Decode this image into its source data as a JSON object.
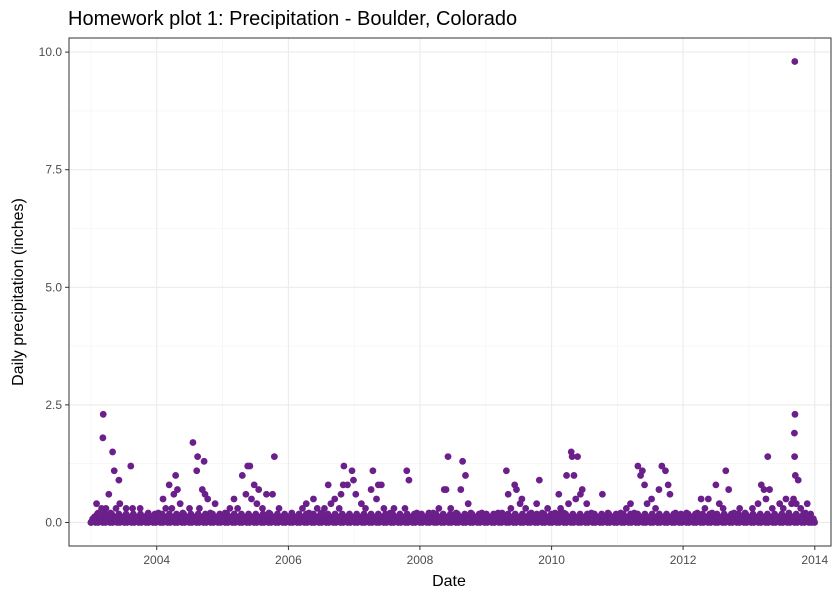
{
  "chart_data": {
    "type": "scatter",
    "title": "Homework plot 1: Precipitation - Boulder, Colorado",
    "xlabel": "Date",
    "ylabel": "Daily precipitation (inches)",
    "x_ticks": [
      "2004",
      "2006",
      "2008",
      "2010",
      "2012",
      "2014"
    ],
    "y_ticks": [
      "0.0",
      "2.5",
      "5.0",
      "7.5",
      "10.0"
    ],
    "xlim": [
      "2002-09-01",
      "2014-04-01"
    ],
    "ylim": [
      -0.5,
      10.3
    ],
    "grid": true,
    "point_color": "#6a1f8a",
    "series": [
      {
        "points": [
          [
            "2003-01-01",
            0
          ],
          [
            "2003-01-20",
            0.1
          ],
          [
            "2003-02-01",
            0.4
          ],
          [
            "2003-02-10",
            0.2
          ],
          [
            "2003-02-20",
            0.1
          ],
          [
            "2003-03-01",
            0.3
          ],
          [
            "2003-03-08",
            1.8
          ],
          [
            "2003-03-10",
            2.3
          ],
          [
            "2003-03-18",
            0.2
          ],
          [
            "2003-03-25",
            0.3
          ],
          [
            "2003-04-01",
            0.1
          ],
          [
            "2003-04-10",
            0.6
          ],
          [
            "2003-04-20",
            0.2
          ],
          [
            "2003-05-01",
            1.5
          ],
          [
            "2003-05-10",
            1.1
          ],
          [
            "2003-05-20",
            0.3
          ],
          [
            "2003-06-05",
            0.9
          ],
          [
            "2003-06-10",
            0.4
          ],
          [
            "2003-06-25",
            0.1
          ],
          [
            "2003-07-15",
            0.3
          ],
          [
            "2003-08-01",
            0.1
          ],
          [
            "2003-08-10",
            1.2
          ],
          [
            "2003-08-20",
            0.3
          ],
          [
            "2003-09-10",
            0.05
          ],
          [
            "2003-10-01",
            0.3
          ],
          [
            "2003-10-20",
            0.1
          ],
          [
            "2003-11-15",
            0.2
          ],
          [
            "2003-12-10",
            0.1
          ],
          [
            "2004-01-10",
            0.2
          ],
          [
            "2004-02-05",
            0.5
          ],
          [
            "2004-02-20",
            0.3
          ],
          [
            "2004-03-10",
            0.8
          ],
          [
            "2004-03-25",
            0.3
          ],
          [
            "2004-04-05",
            0.6
          ],
          [
            "2004-04-15",
            1.0
          ],
          [
            "2004-04-25",
            0.7
          ],
          [
            "2004-05-10",
            0.4
          ],
          [
            "2004-05-25",
            0.2
          ],
          [
            "2004-06-10",
            0.1
          ],
          [
            "2004-07-01",
            0.3
          ],
          [
            "2004-07-20",
            1.7
          ],
          [
            "2004-08-10",
            1.1
          ],
          [
            "2004-08-15",
            1.4
          ],
          [
            "2004-08-25",
            0.3
          ],
          [
            "2004-09-10",
            0.7
          ],
          [
            "2004-09-20",
            1.3
          ],
          [
            "2004-09-25",
            0.6
          ],
          [
            "2004-10-10",
            0.5
          ],
          [
            "2004-10-25",
            0.2
          ],
          [
            "2004-11-20",
            0.4
          ],
          [
            "2004-12-10",
            0.1
          ],
          [
            "2005-01-15",
            0.2
          ],
          [
            "2005-02-10",
            0.3
          ],
          [
            "2005-03-05",
            0.5
          ],
          [
            "2005-03-25",
            0.3
          ],
          [
            "2005-04-20",
            1.0
          ],
          [
            "2005-05-10",
            0.6
          ],
          [
            "2005-05-20",
            1.2
          ],
          [
            "2005-06-01",
            1.2
          ],
          [
            "2005-06-10",
            0.5
          ],
          [
            "2005-06-25",
            0.8
          ],
          [
            "2005-07-10",
            0.4
          ],
          [
            "2005-07-20",
            0.7
          ],
          [
            "2005-08-10",
            0.3
          ],
          [
            "2005-09-01",
            0.6
          ],
          [
            "2005-09-15",
            0.2
          ],
          [
            "2005-10-05",
            0.6
          ],
          [
            "2005-10-15",
            1.4
          ],
          [
            "2005-11-10",
            0.3
          ],
          [
            "2005-12-10",
            0.1
          ],
          [
            "2006-01-20",
            0.2
          ],
          [
            "2006-02-15",
            0.1
          ],
          [
            "2006-03-20",
            0.3
          ],
          [
            "2006-04-10",
            0.4
          ],
          [
            "2006-04-25",
            0.2
          ],
          [
            "2006-05-20",
            0.5
          ],
          [
            "2006-06-10",
            0.3
          ],
          [
            "2006-07-05",
            0.2
          ],
          [
            "2006-07-20",
            0.3
          ],
          [
            "2006-08-10",
            0.8
          ],
          [
            "2006-08-25",
            0.4
          ],
          [
            "2006-09-15",
            0.5
          ],
          [
            "2006-10-10",
            0.3
          ],
          [
            "2006-10-20",
            0.6
          ],
          [
            "2006-11-01",
            0.8
          ],
          [
            "2006-11-05",
            1.2
          ],
          [
            "2006-11-25",
            0.8
          ],
          [
            "2006-12-20",
            1.1
          ],
          [
            "2006-12-28",
            0.9
          ],
          [
            "2007-01-10",
            0.6
          ],
          [
            "2007-02-10",
            0.4
          ],
          [
            "2007-03-05",
            0.3
          ],
          [
            "2007-04-05",
            0.7
          ],
          [
            "2007-04-15",
            1.1
          ],
          [
            "2007-05-05",
            0.5
          ],
          [
            "2007-05-15",
            0.8
          ],
          [
            "2007-06-01",
            0.8
          ],
          [
            "2007-06-15",
            0.3
          ],
          [
            "2007-07-20",
            0.2
          ],
          [
            "2007-08-10",
            0.3
          ],
          [
            "2007-09-01",
            0.1
          ],
          [
            "2007-10-10",
            0.3
          ],
          [
            "2007-10-20",
            1.1
          ],
          [
            "2007-11-01",
            0.9
          ],
          [
            "2007-12-15",
            0.2
          ],
          [
            "2008-01-20",
            0.1
          ],
          [
            "2008-02-20",
            0.2
          ],
          [
            "2008-03-15",
            0.2
          ],
          [
            "2008-04-15",
            0.3
          ],
          [
            "2008-05-15",
            0.7
          ],
          [
            "2008-05-25",
            0.7
          ],
          [
            "2008-06-05",
            1.4
          ],
          [
            "2008-06-20",
            0.3
          ],
          [
            "2008-07-20",
            0.2
          ],
          [
            "2008-08-15",
            0.7
          ],
          [
            "2008-08-25",
            1.3
          ],
          [
            "2008-09-10",
            1.0
          ],
          [
            "2008-09-25",
            0.4
          ],
          [
            "2008-10-10",
            0.2
          ],
          [
            "2008-11-10",
            0.1
          ],
          [
            "2008-12-10",
            0.2
          ],
          [
            "2009-01-15",
            0.1
          ],
          [
            "2009-02-15",
            0.1
          ],
          [
            "2009-03-10",
            0.2
          ],
          [
            "2009-04-01",
            0.2
          ],
          [
            "2009-04-25",
            1.1
          ],
          [
            "2009-05-05",
            0.6
          ],
          [
            "2009-05-20",
            0.3
          ],
          [
            "2009-06-10",
            0.8
          ],
          [
            "2009-06-20",
            0.7
          ],
          [
            "2009-07-10",
            0.4
          ],
          [
            "2009-07-20",
            0.5
          ],
          [
            "2009-08-10",
            0.3
          ],
          [
            "2009-09-10",
            0.2
          ],
          [
            "2009-10-10",
            0.4
          ],
          [
            "2009-10-25",
            0.9
          ],
          [
            "2009-11-10",
            0.2
          ],
          [
            "2009-12-10",
            0.3
          ],
          [
            "2010-01-20",
            0.2
          ],
          [
            "2010-02-10",
            0.6
          ],
          [
            "2010-02-20",
            0.3
          ],
          [
            "2010-03-10",
            0.2
          ],
          [
            "2010-03-25",
            1.0
          ],
          [
            "2010-04-05",
            0.4
          ],
          [
            "2010-04-20",
            1.5
          ],
          [
            "2010-04-25",
            1.4
          ],
          [
            "2010-05-05",
            1.0
          ],
          [
            "2010-05-15",
            0.5
          ],
          [
            "2010-05-25",
            1.4
          ],
          [
            "2010-06-10",
            0.6
          ],
          [
            "2010-06-20",
            0.7
          ],
          [
            "2010-07-15",
            0.4
          ],
          [
            "2010-08-10",
            0.2
          ],
          [
            "2010-09-10",
            0.1
          ],
          [
            "2010-10-10",
            0.6
          ],
          [
            "2010-11-10",
            0.2
          ],
          [
            "2010-12-10",
            0.1
          ],
          [
            "2011-01-20",
            0.2
          ],
          [
            "2011-02-20",
            0.3
          ],
          [
            "2011-03-15",
            0.4
          ],
          [
            "2011-04-05",
            0.2
          ],
          [
            "2011-04-25",
            1.2
          ],
          [
            "2011-05-10",
            1.0
          ],
          [
            "2011-05-20",
            1.1
          ],
          [
            "2011-06-01",
            0.8
          ],
          [
            "2011-06-15",
            0.4
          ],
          [
            "2011-07-10",
            0.5
          ],
          [
            "2011-08-01",
            0.3
          ],
          [
            "2011-08-20",
            0.7
          ],
          [
            "2011-09-05",
            1.2
          ],
          [
            "2011-09-25",
            1.1
          ],
          [
            "2011-10-10",
            0.8
          ],
          [
            "2011-10-20",
            0.6
          ],
          [
            "2011-11-20",
            0.2
          ],
          [
            "2011-12-20",
            0.1
          ],
          [
            "2012-01-20",
            0.2
          ],
          [
            "2012-02-20",
            0.1
          ],
          [
            "2012-03-20",
            0.2
          ],
          [
            "2012-04-10",
            0.5
          ],
          [
            "2012-05-01",
            0.3
          ],
          [
            "2012-05-20",
            0.5
          ],
          [
            "2012-06-10",
            0.2
          ],
          [
            "2012-07-01",
            0.8
          ],
          [
            "2012-07-20",
            0.4
          ],
          [
            "2012-08-10",
            0.3
          ],
          [
            "2012-08-25",
            1.1
          ],
          [
            "2012-09-10",
            0.7
          ],
          [
            "2012-10-10",
            0.2
          ],
          [
            "2012-11-10",
            0.3
          ],
          [
            "2012-12-10",
            0.2
          ],
          [
            "2013-01-20",
            0.3
          ],
          [
            "2013-02-20",
            0.4
          ],
          [
            "2013-03-10",
            0.8
          ],
          [
            "2013-03-25",
            0.7
          ],
          [
            "2013-04-05",
            0.5
          ],
          [
            "2013-04-15",
            1.4
          ],
          [
            "2013-04-25",
            0.7
          ],
          [
            "2013-05-10",
            0.3
          ],
          [
            "2013-06-01",
            0.1
          ],
          [
            "2013-06-20",
            0.4
          ],
          [
            "2013-07-10",
            0.3
          ],
          [
            "2013-07-25",
            0.5
          ],
          [
            "2013-08-10",
            0.2
          ],
          [
            "2013-08-25",
            0.4
          ],
          [
            "2013-09-05",
            0.5
          ],
          [
            "2013-09-10",
            1.9
          ],
          [
            "2013-09-11",
            1.4
          ],
          [
            "2013-09-12",
            9.8
          ],
          [
            "2013-09-13",
            2.3
          ],
          [
            "2013-09-15",
            1.0
          ],
          [
            "2013-09-20",
            0.4
          ],
          [
            "2013-10-01",
            0.9
          ],
          [
            "2013-10-15",
            0.3
          ],
          [
            "2013-11-10",
            0.2
          ],
          [
            "2013-11-20",
            0.4
          ],
          [
            "2013-12-05",
            0.1
          ],
          [
            "2013-12-20",
            0.05
          ],
          [
            "2013-12-31",
            0
          ]
        ]
      }
    ]
  }
}
